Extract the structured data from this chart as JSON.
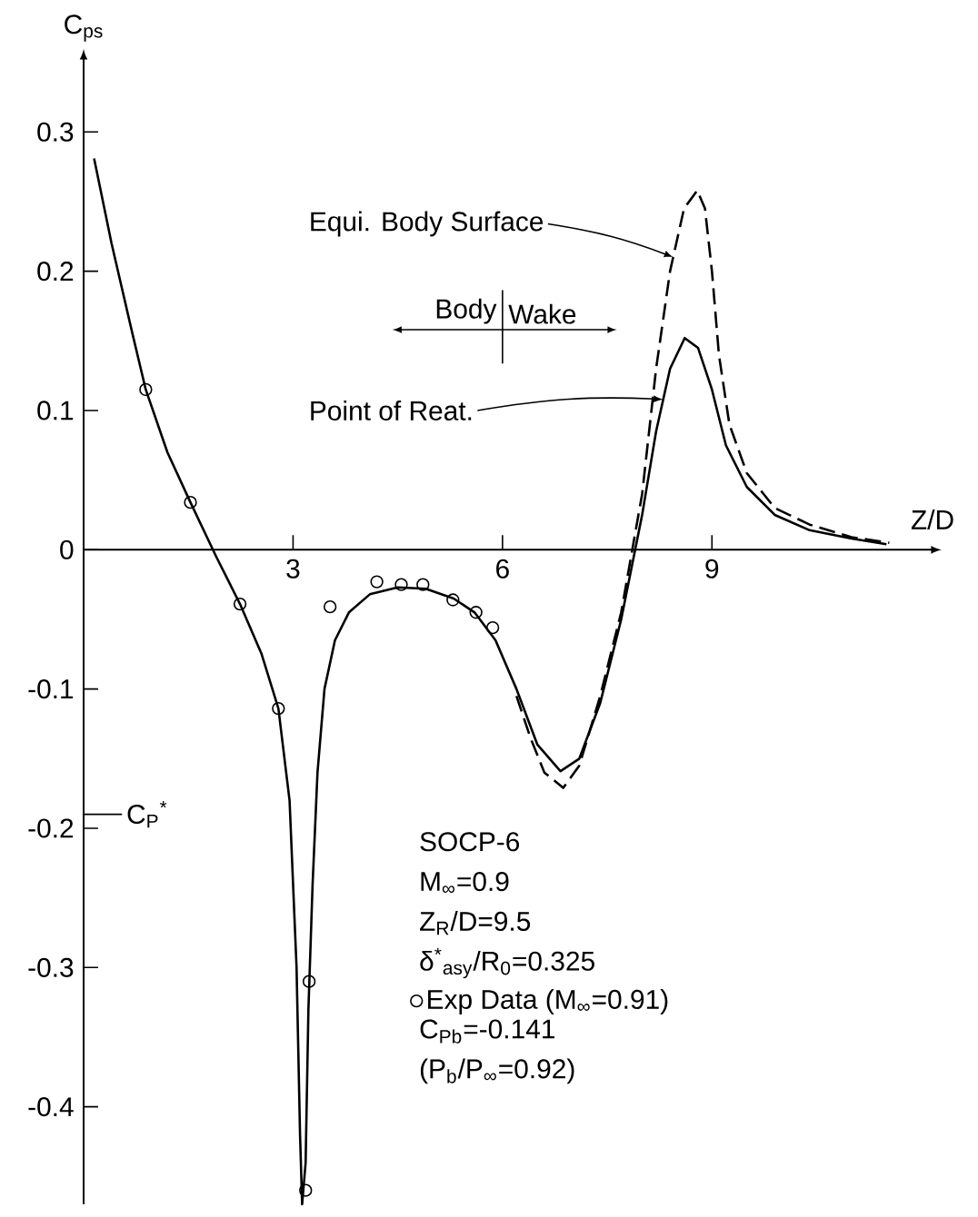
{
  "chart_data": {
    "type": "line",
    "xlabel": "Z/D",
    "ylabel": "C$_{ps}$",
    "xlim": [
      0,
      12.16
    ],
    "ylim": [
      -0.47,
      0.353
    ],
    "xticks": [
      3,
      6,
      9
    ],
    "yticks": [
      -0.4,
      -0.3,
      -0.2,
      -0.1,
      0,
      0.1,
      0.2,
      0.3
    ],
    "legend": "bottom right",
    "series": [
      {
        "color": "#000000",
        "line_style": "solid",
        "x": [
          0.15,
          0.4,
          0.7,
          0.89,
          1.2,
          1.53,
          1.9,
          2.24,
          2.55,
          2.79,
          2.95,
          3.05,
          3.1,
          3.13,
          3.18,
          3.22,
          3.28,
          3.35,
          3.45,
          3.6,
          3.8,
          4.1,
          4.5,
          4.9,
          5.3,
          5.6,
          5.9,
          6.2,
          6.5,
          6.83,
          7.1,
          7.4,
          7.7,
          8.0,
          8.2,
          8.4,
          8.61,
          8.8,
          9.0,
          9.2,
          9.5,
          9.9,
          10.4,
          11.0,
          11.5
        ],
        "values": [
          0.281,
          0.22,
          0.155,
          0.115,
          0.07,
          0.034,
          -0.005,
          -0.039,
          -0.075,
          -0.114,
          -0.18,
          -0.3,
          -0.42,
          -0.47,
          -0.44,
          -0.33,
          -0.24,
          -0.16,
          -0.1,
          -0.065,
          -0.045,
          -0.032,
          -0.027,
          -0.028,
          -0.035,
          -0.045,
          -0.065,
          -0.1,
          -0.14,
          -0.159,
          -0.15,
          -0.11,
          -0.05,
          0.025,
          0.085,
          0.13,
          0.152,
          0.145,
          0.115,
          0.075,
          0.045,
          0.025,
          0.014,
          0.008,
          0.004
        ]
      },
      {
        "color": "#000000",
        "line_style": "dashed",
        "x": [
          6.2,
          6.4,
          6.6,
          6.87,
          7.1,
          7.4,
          7.7,
          8.0,
          8.2,
          8.4,
          8.6,
          8.79,
          8.9,
          9.0,
          9.1,
          9.25,
          9.5,
          9.9,
          10.4,
          11.0,
          11.54
        ],
        "values": [
          -0.105,
          -0.135,
          -0.16,
          -0.171,
          -0.155,
          -0.105,
          -0.045,
          0.04,
          0.13,
          0.2,
          0.245,
          0.258,
          0.245,
          0.2,
          0.14,
          0.09,
          0.055,
          0.03,
          0.018,
          0.009,
          0.005
        ]
      },
      {
        "type": "scatter",
        "name": "Exp Data (M$_{∞}$=0.91)",
        "color": "#000000",
        "marker": "circle",
        "x": [
          0.89,
          1.53,
          2.24,
          2.79,
          3.23,
          3.18,
          3.53,
          4.2,
          4.55,
          4.86,
          5.29,
          5.62,
          5.86
        ],
        "values": [
          0.115,
          0.034,
          -0.039,
          -0.114,
          -0.31,
          -0.46,
          -0.041,
          -0.023,
          -0.025,
          -0.025,
          -0.036,
          -0.045,
          -0.056
        ]
      }
    ],
    "ref_lines": [
      {
        "axis": "y",
        "value": -0.19,
        "label": "C$_{P}$$^{*}$"
      }
    ],
    "annotations": [
      {
        "text": "Equi. Body Surface",
        "x": 8.45,
        "y": 0.21
      },
      {
        "text": "Point of Reat.",
        "x": 8.3,
        "y": 0.108
      },
      "Body",
      "Wake",
      "SOCP-6",
      "M$_{∞}$=0.9",
      "Z$_{R}$/D=9.5",
      "δ$^{*}$$_{asy}$/R$_{0}$=0.325",
      "C$_{Pb}$=-0.141",
      "(P$_{b}$/P$_{∞}$=0.92)"
    ]
  }
}
